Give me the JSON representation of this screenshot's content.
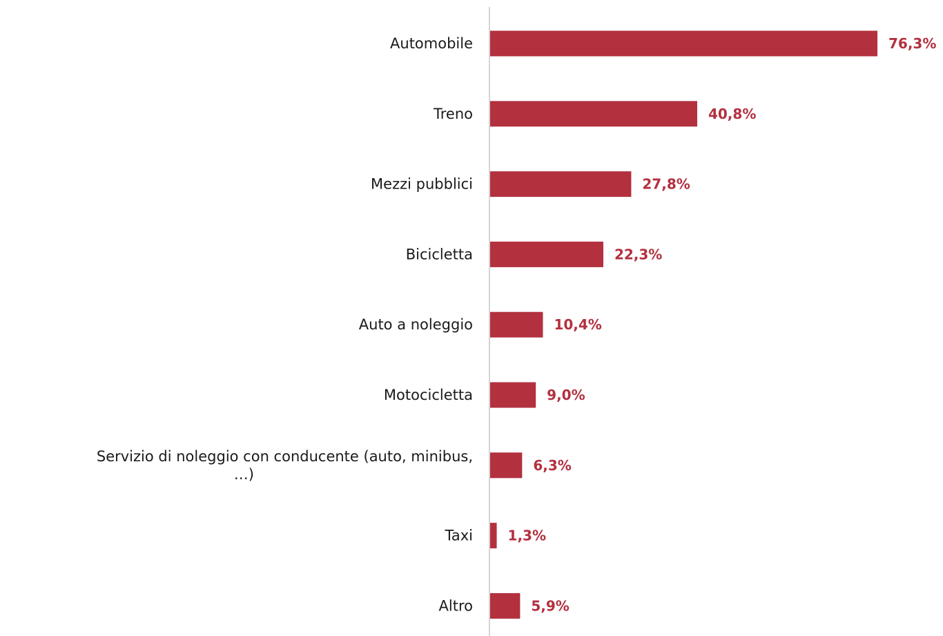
{
  "chart_data": {
    "type": "bar",
    "orientation": "horizontal",
    "title": "",
    "xlabel": "",
    "ylabel": "",
    "xlim": [
      0,
      76.3
    ],
    "grid": false,
    "legend": "none",
    "categories": [
      "Automobile",
      "Treno",
      "Mezzi pubblici",
      "Bicicletta",
      "Auto a noleggio",
      "Motocicletta",
      [
        "Servizio di noleggio con conducente (auto, minibus,",
        "…)"
      ],
      "Taxi",
      "Altro"
    ],
    "values": [
      76.3,
      40.8,
      27.8,
      22.3,
      10.4,
      9.0,
      6.3,
      1.3,
      5.9
    ],
    "value_labels": [
      "76,3%",
      "40,8%",
      "27,8%",
      "22,3%",
      "10,4%",
      "9,0%",
      "6,3%",
      "1,3%",
      "5,9%"
    ],
    "bar_color": "#b3303f",
    "label_color": "#b3303f",
    "axis_color": "#d4d4d4"
  }
}
